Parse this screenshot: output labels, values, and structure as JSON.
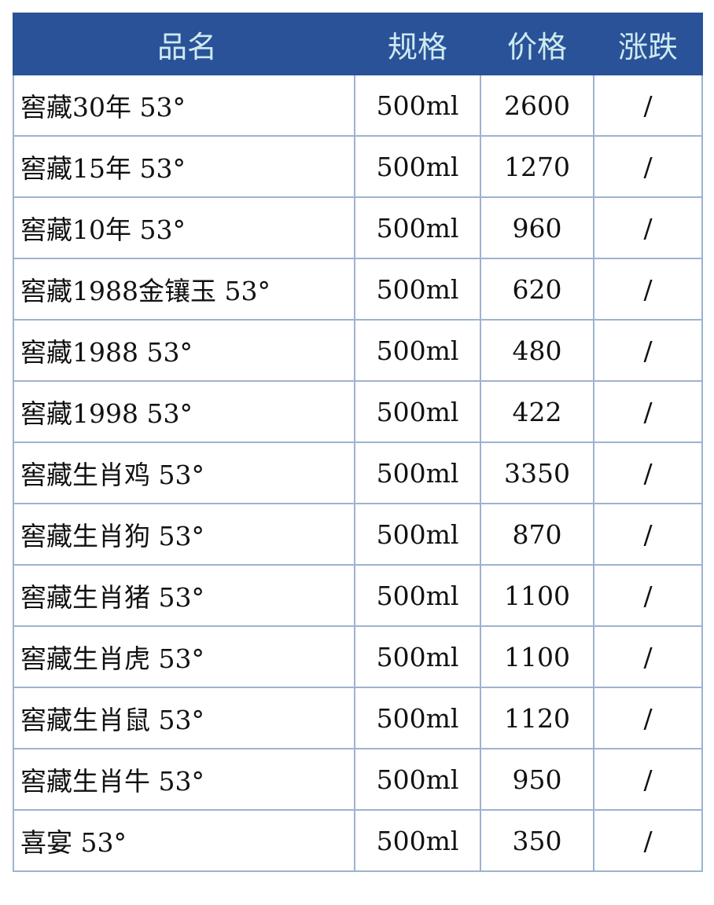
{
  "headers": {
    "name": "品名",
    "spec": "规格",
    "price": "价格",
    "change": "涨跌"
  },
  "rows": [
    {
      "name": "窖藏30年 53°",
      "spec": "500ml",
      "price": "2600",
      "change": "/"
    },
    {
      "name": "窖藏15年 53°",
      "spec": "500ml",
      "price": "1270",
      "change": "/"
    },
    {
      "name": "窖藏10年 53°",
      "spec": "500ml",
      "price": "960",
      "change": "/"
    },
    {
      "name": "窖藏1988金镶玉 53°",
      "spec": "500ml",
      "price": "620",
      "change": "/"
    },
    {
      "name": "窖藏1988 53°",
      "spec": "500ml",
      "price": "480",
      "change": "/"
    },
    {
      "name": "窖藏1998 53°",
      "spec": "500ml",
      "price": "422",
      "change": "/"
    },
    {
      "name": "窖藏生肖鸡 53°",
      "spec": "500ml",
      "price": "3350",
      "change": "/"
    },
    {
      "name": "窖藏生肖狗 53°",
      "spec": "500ml",
      "price": "870",
      "change": "/"
    },
    {
      "name": "窖藏生肖猪 53°",
      "spec": "500ml",
      "price": "1100",
      "change": "/"
    },
    {
      "name": "窖藏生肖虎 53°",
      "spec": "500ml",
      "price": "1100",
      "change": "/"
    },
    {
      "name": "窖藏生肖鼠 53°",
      "spec": "500ml",
      "price": "1120",
      "change": "/"
    },
    {
      "name": "窖藏生肖牛 53°",
      "spec": "500ml",
      "price": "950",
      "change": "/"
    },
    {
      "name": "喜宴 53°",
      "spec": "500ml",
      "price": "350",
      "change": "/"
    }
  ],
  "colors": {
    "header_bg": "#2a5298",
    "header_text": "#cdeaf0",
    "border": "#9db3cf"
  }
}
